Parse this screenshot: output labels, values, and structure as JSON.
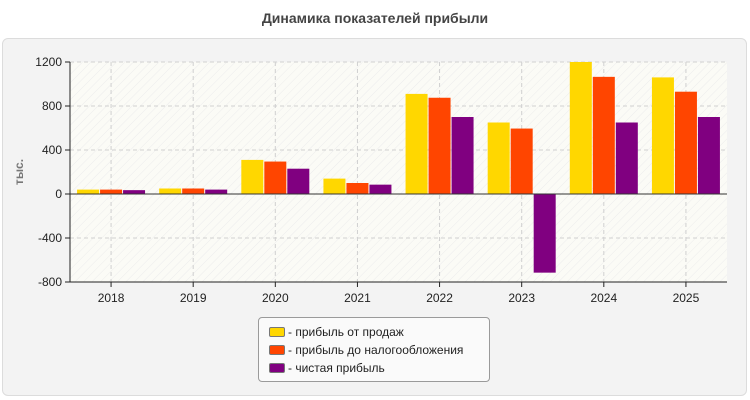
{
  "chart_data": {
    "type": "bar",
    "title": "Динамика показателей прибыли",
    "xlabel": "",
    "ylabel": "тыс.",
    "categories": [
      "2018",
      "2019",
      "2020",
      "2021",
      "2022",
      "2023",
      "2024",
      "2025"
    ],
    "series": [
      {
        "name": "прибыль от продаж",
        "color": "#FFD700",
        "values": [
          40,
          50,
          310,
          140,
          910,
          650,
          1200,
          1060
        ]
      },
      {
        "name": "прибыль до налогообложения",
        "color": "#FF4500",
        "values": [
          40,
          50,
          295,
          100,
          875,
          595,
          1065,
          930
        ]
      },
      {
        "name": "чистая прибыль",
        "color": "#800080",
        "values": [
          35,
          40,
          230,
          85,
          700,
          -715,
          650,
          700
        ]
      }
    ],
    "ylim": [
      -800,
      1200
    ],
    "yticks": [
      -800,
      -400,
      0,
      400,
      800,
      1200
    ],
    "legend_prefix": "- ",
    "legend_position": "bottom-center",
    "grid": true
  }
}
